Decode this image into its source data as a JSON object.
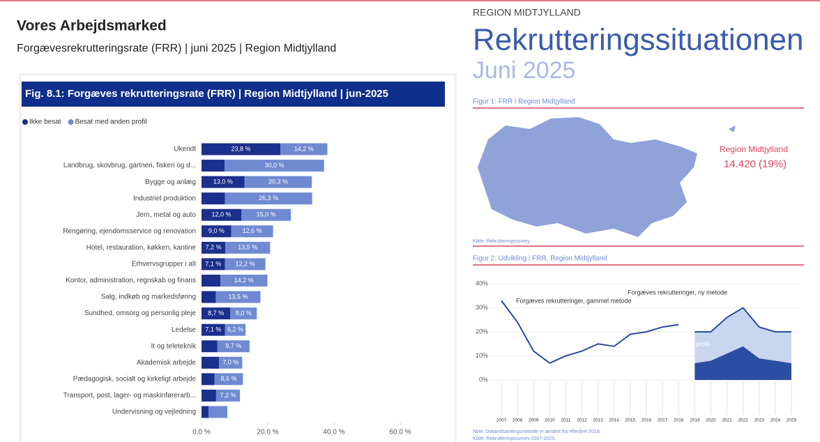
{
  "header": {
    "title": "Vores Arbejdsmarked",
    "subtitle": "Forgævesrekrutteringsrate (FRR) | juni 2025 | Region Midtjylland"
  },
  "right_header": {
    "region": "REGION MIDTJYLLAND",
    "title": "Rekrutteringssituationen",
    "subtitle": "Juni 2025"
  },
  "map": {
    "caption": "Figur 1: FRR i Region Midtjylland",
    "label": "Region Midtjylland",
    "value": "14.420 (19%)",
    "source": "Kilde: Rekrutteringssurvey"
  },
  "chart_data": [
    {
      "type": "bar",
      "orientation": "horizontal",
      "stacked": true,
      "legend": "top-left",
      "title": "Fig. 8.1: Forgæves rekrutteringsrate (FRR) | Region Midtjylland | jun-2025",
      "categories": [
        "Ukendt",
        "Landbrug, skovbrug, gartneri, fiskeri og d...",
        "Bygge og anlæg",
        "Industriel produktion",
        "Jern, metal og auto",
        "Rengøring, ejendomsservice og renovation",
        "Hotel, restauration, køkken, kantine",
        "Erhvervsgrupper i alt",
        "Kontor, administration, regnskab og finans",
        "Salg, indkøb og markedsføring",
        "Sundhed, omsorg og personlig pleje",
        "Ledelse",
        "It og teleteknik",
        "Akademisk arbejde",
        "Pædagogisk, socialt og kirkeligt arbejde",
        "Transport, post, lager- og maskinførerarb...",
        "Undervisning og vejledning"
      ],
      "series": [
        {
          "name": "Ikke besat",
          "color": "#1b2f8c",
          "values": [
            23.8,
            7.0,
            13.0,
            7.1,
            12.0,
            9.0,
            7.2,
            7.1,
            5.7,
            4.3,
            8.7,
            7.1,
            4.8,
            5.3,
            3.9,
            4.4,
            2.1
          ],
          "value_labels": [
            "23,8 %",
            null,
            "13,0 %",
            null,
            "12,0 %",
            "9,0 %",
            "7,2 %",
            "7,1 %",
            null,
            null,
            "8,7 %",
            "7,1 %",
            null,
            null,
            null,
            null,
            null
          ]
        },
        {
          "name": "Besat med anden profil",
          "color": "#6f8ad1",
          "values": [
            14.2,
            30.0,
            20.3,
            26.3,
            15.0,
            12.6,
            13.5,
            12.2,
            14.2,
            13.5,
            8.0,
            6.2,
            9.7,
            7.0,
            8.6,
            7.2,
            5.7
          ],
          "value_labels": [
            "14,2 %",
            "30,0 %",
            "20,3 %",
            "26,3 %",
            "15,0 %",
            "12,6 %",
            "13,5 %",
            "12,2 %",
            "14,2 %",
            "13,5 %",
            "8,0 %",
            "6,2 %",
            "9,7 %",
            "7,0 %",
            "8,6 %",
            "7,2 %",
            null
          ]
        }
      ],
      "xlim": [
        0,
        60
      ],
      "xticks": [
        {
          "value": 0,
          "label": "0.0 %"
        },
        {
          "value": 20,
          "label": "20.0 %"
        },
        {
          "value": 40,
          "label": "40.0 %"
        },
        {
          "value": 60,
          "label": "60.0 %"
        }
      ]
    },
    {
      "type": "line",
      "title": "Figur 2: Udvikling i FRR, Region Midtjylland",
      "categories": [
        "2007",
        "2008",
        "2009",
        "2010",
        "2011",
        "2012",
        "2013",
        "2014",
        "2015",
        "2016",
        "2017",
        "2018",
        "2019",
        "2020",
        "2021",
        "2022",
        "2023",
        "2024",
        "2025"
      ],
      "series": [
        {
          "name": "Forgæves rekrutteringer, gammel metode",
          "color": "#2a4a9e",
          "kind": "line",
          "values": [
            33,
            24,
            12,
            7,
            10,
            12,
            15,
            14,
            19,
            20,
            22,
            23,
            null,
            null,
            null,
            null,
            null,
            null,
            null
          ]
        },
        {
          "name": "Forgæves rekrutteringer, ny metode",
          "color": "#2a4a9e",
          "kind": "line",
          "values": [
            null,
            null,
            null,
            null,
            null,
            null,
            null,
            null,
            null,
            null,
            null,
            null,
            20,
            20,
            26,
            30,
            22,
            20,
            20
          ]
        },
        {
          "name": "Ikke besat",
          "color": "#2b4ea3",
          "kind": "area",
          "values": [
            null,
            null,
            null,
            null,
            null,
            null,
            null,
            null,
            null,
            null,
            null,
            null,
            7,
            8,
            11,
            14,
            9,
            8,
            7
          ]
        },
        {
          "name": "Besat med anden profil",
          "color": "#c9d6f0",
          "kind": "area",
          "values": [
            null,
            null,
            null,
            null,
            null,
            null,
            null,
            null,
            null,
            null,
            null,
            null,
            13,
            12,
            15,
            16,
            13,
            12,
            13
          ]
        }
      ],
      "stacked_areas": true,
      "ylim": [
        0,
        40
      ],
      "yticks": [
        {
          "value": 0,
          "label": "0%"
        },
        {
          "value": 10,
          "label": "10%"
        },
        {
          "value": 20,
          "label": "20%"
        },
        {
          "value": 30,
          "label": "30%"
        },
        {
          "value": 40,
          "label": "40%"
        }
      ],
      "notes": [
        "Note: Dataindsamlingsmetode er ændret fra efteråret 2018.",
        "Kilde: Rekrutteringssurvey 2007-2025."
      ]
    }
  ]
}
